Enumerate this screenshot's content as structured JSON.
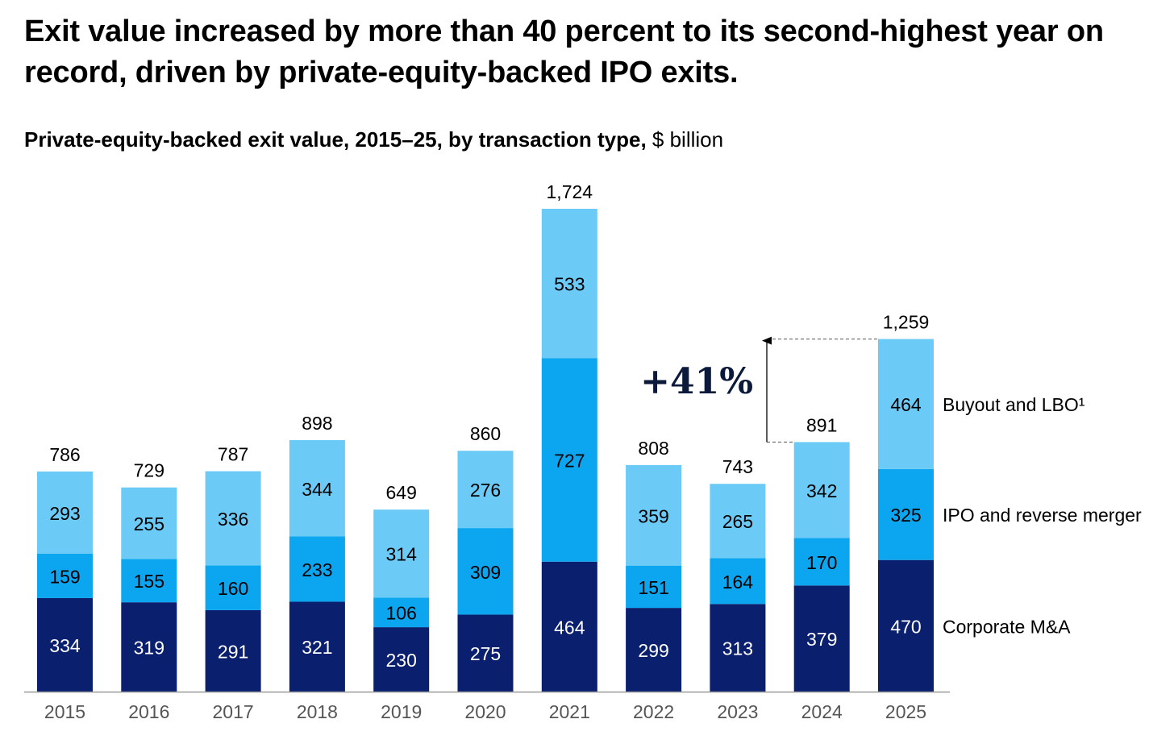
{
  "title": "Exit value increased by more than 40 percent to its second-highest year on record, driven by private-equity-backed IPO exits.",
  "subtitle": {
    "bold": "Private-equity-backed exit value, 2015–25, by transaction type,",
    "unit": "$ billion"
  },
  "colors": {
    "corporate": "#0a1f6e",
    "ipo": "#0ba6ef",
    "buyout": "#6ccbf6",
    "axis": "#999999",
    "arrow": "#000000"
  },
  "chart_data": {
    "type": "bar",
    "stacked": true,
    "categories": [
      "2015",
      "2016",
      "2017",
      "2018",
      "2019",
      "2020",
      "2021",
      "2022",
      "2023",
      "2024",
      "2025"
    ],
    "series": [
      {
        "key": "corporate",
        "name": "Corporate M&A",
        "values": [
          334,
          319,
          291,
          321,
          230,
          275,
          464,
          299,
          313,
          379,
          470
        ]
      },
      {
        "key": "ipo",
        "name": "IPO and reverse merger",
        "values": [
          159,
          155,
          160,
          233,
          106,
          309,
          727,
          151,
          164,
          170,
          325
        ]
      },
      {
        "key": "buyout",
        "name": "Buyout and LBO¹",
        "values": [
          293,
          255,
          336,
          344,
          314,
          276,
          533,
          359,
          265,
          342,
          464
        ]
      }
    ],
    "totals": [
      "786",
      "729",
      "787",
      "898",
      "649",
      "860",
      "1,724",
      "808",
      "743",
      "891",
      "1,259"
    ],
    "totals_values": [
      786,
      729,
      787,
      898,
      649,
      860,
      1724,
      808,
      743,
      891,
      1259
    ],
    "annotation": {
      "text": "+41%",
      "from": "2024",
      "to": "2025"
    },
    "ylim": [
      0,
      1724
    ],
    "grid": false,
    "legend": "right"
  }
}
